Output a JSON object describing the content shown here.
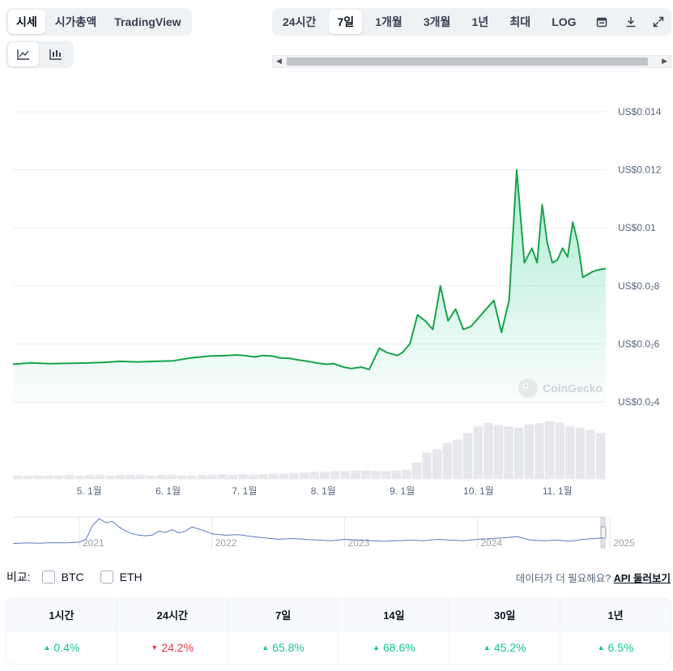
{
  "tabs_left": {
    "items": [
      "시세",
      "시가총액",
      "TradingView"
    ],
    "active": 0
  },
  "chart_icons": {
    "line": "line-chart-icon",
    "candle": "candlestick-icon",
    "active": 0
  },
  "ranges": {
    "items": [
      "24시간",
      "7일",
      "1개월",
      "3개월",
      "1년",
      "최대",
      "LOG"
    ],
    "active": 1,
    "icons": [
      "calendar-icon",
      "download-icon",
      "expand-icon"
    ]
  },
  "colors": {
    "line": "#16a34a",
    "fill": "#16c784",
    "volume": "#e5e7eb",
    "nav": "#5b7bc4",
    "up": "#16c784",
    "down": "#ea3943"
  },
  "chart_data": [
    {
      "type": "area",
      "title": "",
      "ylabel": "",
      "y_tick_labels": [
        "US$0.014",
        "US$0.012",
        "US$0.01",
        "US$0.0₂8",
        "US$0.0₂6",
        "US$0.0₂4"
      ],
      "y_ticks": [
        0.014,
        0.012,
        0.01,
        0.008,
        0.006,
        0.004
      ],
      "ylim": [
        0.004,
        0.014
      ],
      "x_tick_labels": [
        "5. 1월",
        "6. 1월",
        "7. 1월",
        "8. 1월",
        "9. 1월",
        "10. 1월",
        "11. 1월"
      ],
      "x_ticks": [
        "2024-05-01",
        "2024-06-01",
        "2024-07-01",
        "2024-08-01",
        "2024-09-01",
        "2024-10-01",
        "2024-11-01"
      ],
      "xlim": [
        "2024-04-01",
        "2024-11-20"
      ],
      "watermark": "CoinGecko",
      "series": [
        {
          "x": [
            "2024-04-01",
            "2024-04-08",
            "2024-04-15",
            "2024-04-22",
            "2024-04-29",
            "2024-05-06",
            "2024-05-13",
            "2024-05-20",
            "2024-05-27",
            "2024-06-03",
            "2024-06-10",
            "2024-06-17",
            "2024-06-24",
            "2024-06-28",
            "2024-07-01",
            "2024-07-05",
            "2024-07-08",
            "2024-07-12",
            "2024-07-15",
            "2024-07-19",
            "2024-07-22",
            "2024-07-26",
            "2024-07-29",
            "2024-08-02",
            "2024-08-05",
            "2024-08-09",
            "2024-08-12",
            "2024-08-16",
            "2024-08-19",
            "2024-08-23",
            "2024-08-26",
            "2024-08-30",
            "2024-09-01",
            "2024-09-04",
            "2024-09-07",
            "2024-09-10",
            "2024-09-13",
            "2024-09-16",
            "2024-09-19",
            "2024-09-22",
            "2024-09-25",
            "2024-09-28",
            "2024-10-01",
            "2024-10-04",
            "2024-10-07",
            "2024-10-10",
            "2024-10-13",
            "2024-10-16",
            "2024-10-19",
            "2024-10-22",
            "2024-10-24",
            "2024-10-26",
            "2024-10-28",
            "2024-10-30",
            "2024-11-01",
            "2024-11-03",
            "2024-11-05",
            "2024-11-07",
            "2024-11-09",
            "2024-11-11",
            "2024-11-13",
            "2024-11-15",
            "2024-11-17",
            "2024-11-20"
          ],
          "y": [
            0.0053,
            0.00535,
            0.00532,
            0.00533,
            0.00534,
            0.00536,
            0.0054,
            0.00538,
            0.0054,
            0.00542,
            0.00552,
            0.00558,
            0.0056,
            0.00562,
            0.0056,
            0.00555,
            0.0056,
            0.00558,
            0.00552,
            0.0055,
            0.00545,
            0.0054,
            0.00535,
            0.0053,
            0.00532,
            0.0052,
            0.00515,
            0.0052,
            0.00512,
            0.00585,
            0.0057,
            0.0056,
            0.0057,
            0.006,
            0.007,
            0.0068,
            0.0065,
            0.008,
            0.0068,
            0.0072,
            0.0065,
            0.0066,
            0.0069,
            0.0072,
            0.0075,
            0.0064,
            0.0075,
            0.012,
            0.0088,
            0.0093,
            0.0088,
            0.0108,
            0.0095,
            0.0088,
            0.0089,
            0.0093,
            0.009,
            0.0102,
            0.0095,
            0.0083,
            0.0084,
            0.0085,
            0.00855,
            0.0086
          ]
        }
      ]
    },
    {
      "type": "bar",
      "title": "volume",
      "values": [
        0.05,
        0.05,
        0.05,
        0.05,
        0.05,
        0.06,
        0.05,
        0.06,
        0.06,
        0.05,
        0.06,
        0.06,
        0.06,
        0.05,
        0.06,
        0.06,
        0.05,
        0.05,
        0.06,
        0.06,
        0.07,
        0.06,
        0.07,
        0.06,
        0.07,
        0.08,
        0.08,
        0.09,
        0.1,
        0.11,
        0.11,
        0.12,
        0.12,
        0.13,
        0.13,
        0.12,
        0.12,
        0.13,
        0.14,
        0.25,
        0.4,
        0.45,
        0.55,
        0.6,
        0.7,
        0.8,
        0.85,
        0.82,
        0.8,
        0.78,
        0.83,
        0.85,
        0.88,
        0.86,
        0.8,
        0.78,
        0.75,
        0.7
      ]
    },
    {
      "type": "line",
      "title": "navigator",
      "x_tick_labels": [
        "2021",
        "2022",
        "2023",
        "2024",
        "2025"
      ],
      "x_ticks": [
        2021.0,
        2022.0,
        2023.0,
        2024.0,
        2025.0
      ],
      "xlim": [
        2020.5,
        2024.95
      ],
      "x": [
        2020.5,
        2020.6,
        2020.7,
        2020.8,
        2020.9,
        2021.0,
        2021.05,
        2021.1,
        2021.15,
        2021.2,
        2021.25,
        2021.3,
        2021.35,
        2021.4,
        2021.45,
        2021.5,
        2021.55,
        2021.6,
        2021.65,
        2021.7,
        2021.75,
        2021.8,
        2021.85,
        2021.9,
        2021.95,
        2022.0,
        2022.1,
        2022.2,
        2022.3,
        2022.4,
        2022.5,
        2022.6,
        2022.7,
        2022.8,
        2022.9,
        2023.0,
        2023.1,
        2023.2,
        2023.3,
        2023.4,
        2023.5,
        2023.6,
        2023.7,
        2023.8,
        2023.9,
        2024.0,
        2024.1,
        2024.2,
        2024.3,
        2024.4,
        2024.5,
        2024.6,
        2024.7,
        2024.8,
        2024.95
      ],
      "y": [
        0.1,
        0.12,
        0.11,
        0.13,
        0.12,
        0.15,
        0.25,
        0.75,
        1.0,
        0.85,
        0.9,
        0.7,
        0.55,
        0.45,
        0.4,
        0.38,
        0.4,
        0.55,
        0.5,
        0.6,
        0.48,
        0.55,
        0.7,
        0.62,
        0.55,
        0.45,
        0.4,
        0.42,
        0.35,
        0.3,
        0.25,
        0.28,
        0.25,
        0.22,
        0.2,
        0.25,
        0.22,
        0.2,
        0.18,
        0.2,
        0.22,
        0.2,
        0.25,
        0.22,
        0.2,
        0.25,
        0.28,
        0.3,
        0.35,
        0.22,
        0.2,
        0.22,
        0.18,
        0.25,
        0.3
      ]
    }
  ],
  "compare": {
    "label": "비교:",
    "items": [
      "BTC",
      "ETH"
    ]
  },
  "more_data": {
    "text": "데이터가 더 필요해요?",
    "link": "API 둘러보기"
  },
  "performance": [
    {
      "period": "1시간",
      "value": "0.4%",
      "dir": "up"
    },
    {
      "period": "24시간",
      "value": "24.2%",
      "dir": "down"
    },
    {
      "period": "7일",
      "value": "65.8%",
      "dir": "up"
    },
    {
      "period": "14일",
      "value": "68.6%",
      "dir": "up"
    },
    {
      "period": "30일",
      "value": "45.2%",
      "dir": "up"
    },
    {
      "period": "1년",
      "value": "6.5%",
      "dir": "up"
    }
  ]
}
